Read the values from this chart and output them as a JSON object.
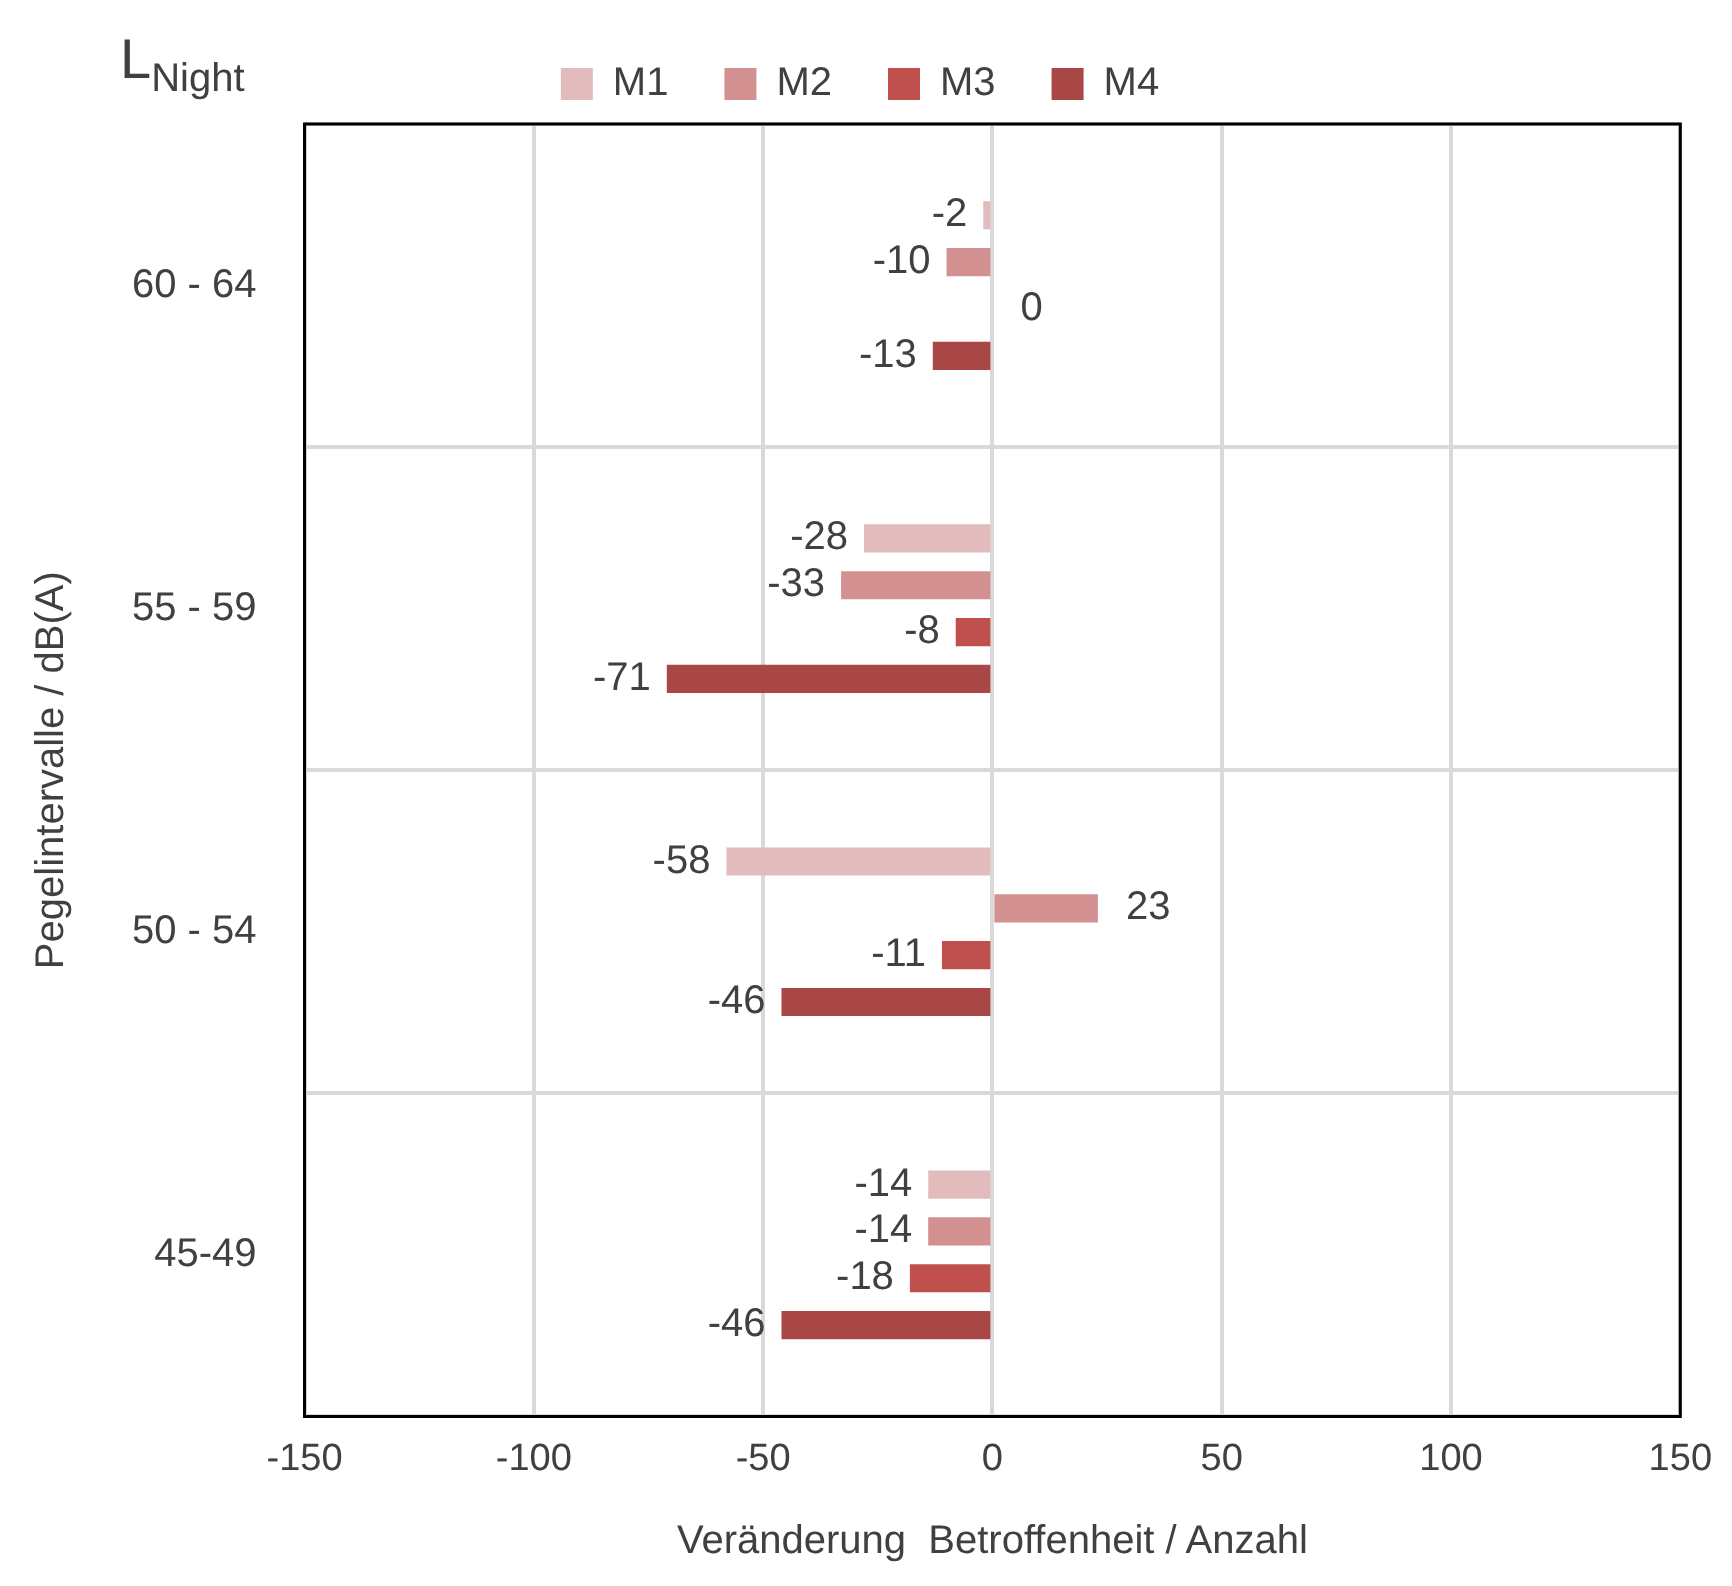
{
  "chart_data": {
    "type": "bar",
    "orientation": "horizontal",
    "title": "L$_{Night}$",
    "xlabel": "Veränderung  Betroffenheit / Anzahl",
    "ylabel": "Pegelintervalle / dB(A)",
    "categories": [
      "60 - 64",
      "55 - 59",
      "50 - 54",
      "45-49"
    ],
    "series": [
      {
        "name": "M1",
        "color": "#e2bcbc",
        "values": [
          -2,
          -28,
          -58,
          -14
        ]
      },
      {
        "name": "M2",
        "color": "#d39090",
        "values": [
          -10,
          -33,
          23,
          -14
        ]
      },
      {
        "name": "M3",
        "color": "#c0504d",
        "values": [
          0,
          -8,
          -11,
          -18
        ]
      },
      {
        "name": "M4",
        "color": "#a94746",
        "values": [
          -13,
          -71,
          -46,
          -46
        ]
      }
    ],
    "xlim": [
      -150,
      150
    ],
    "xticks": [
      -150,
      -100,
      -50,
      0,
      50,
      100,
      150
    ],
    "grid": true,
    "legend": "top",
    "data_labels": true
  }
}
